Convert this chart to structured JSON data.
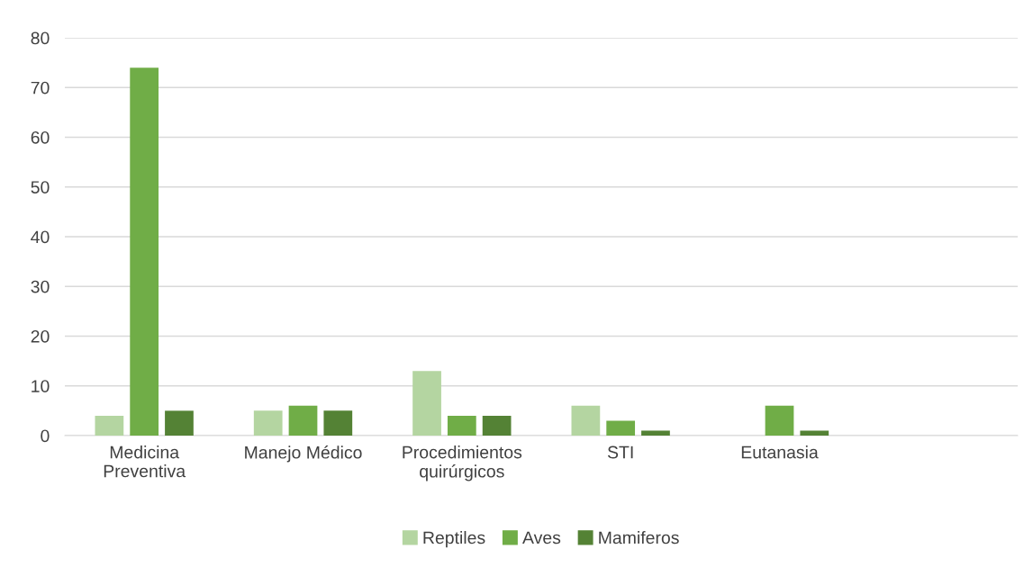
{
  "chart_data": {
    "type": "bar",
    "categories": [
      "Medicina\nPreventiva",
      "Manejo Médico",
      "Procedimientos\nquirúrgicos",
      "STI",
      "Eutanasia",
      null
    ],
    "series": [
      {
        "name": "Reptiles",
        "color": "#b4d5a1",
        "values": [
          4,
          5,
          13,
          6,
          null,
          null
        ]
      },
      {
        "name": "Aves",
        "color": "#70ad47",
        "values": [
          74,
          6,
          4,
          3,
          6,
          null
        ]
      },
      {
        "name": "Mamiferos",
        "color": "#548235",
        "values": [
          5,
          5,
          4,
          1,
          1,
          null
        ]
      }
    ],
    "ylim": [
      0,
      80
    ],
    "yticks": [
      0,
      10,
      20,
      30,
      40,
      50,
      60,
      70,
      80
    ],
    "grid": "y",
    "legend": "bottom"
  }
}
